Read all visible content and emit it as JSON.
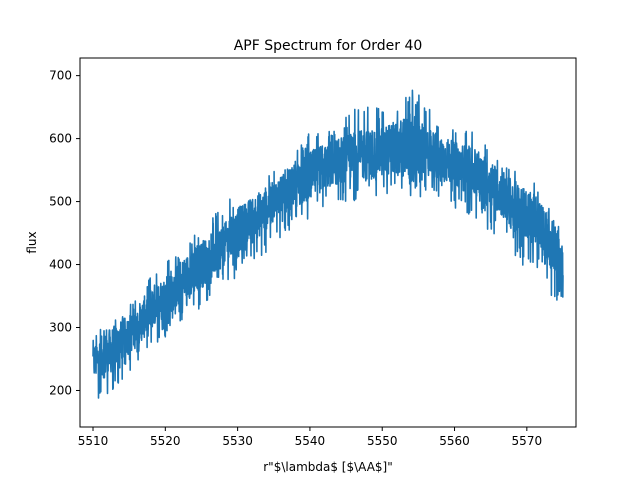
{
  "chart_data": {
    "type": "line",
    "title": "APF Spectrum for Order 40",
    "xlabel": "r\"$\\lambda$ [$\\AA$]\"",
    "ylabel": "flux",
    "xlim": [
      5508.2,
      5576.8
    ],
    "ylim": [
      142,
      728
    ],
    "x_ticks": [
      5510,
      5520,
      5530,
      5540,
      5550,
      5560,
      5570
    ],
    "y_ticks": [
      200,
      300,
      400,
      500,
      600,
      700
    ],
    "x_tick_labels": [
      "5510",
      "5520",
      "5530",
      "5540",
      "5550",
      "5560",
      "5570"
    ],
    "y_tick_labels": [
      "200",
      "300",
      "400",
      "500",
      "600",
      "700"
    ],
    "grid": false,
    "legend": "none",
    "line_color": "#1f77b4",
    "series": [
      {
        "x": [
          5510,
          5512,
          5514,
          5516,
          5518,
          5520,
          5522,
          5524,
          5526,
          5528,
          5530,
          5532,
          5534,
          5536,
          5538,
          5540,
          5542,
          5544,
          5546,
          5548,
          5550,
          5552,
          5554,
          5556,
          5558,
          5560,
          5562,
          5564,
          5566,
          5568,
          5570,
          5572,
          5574,
          5575
        ],
        "lower": [
          185,
          175,
          215,
          235,
          270,
          285,
          305,
          320,
          345,
          370,
          375,
          395,
          420,
          440,
          455,
          465,
          485,
          495,
          500,
          515,
          505,
          510,
          500,
          510,
          505,
          490,
          475,
          460,
          445,
          410,
          395,
          385,
          325,
          335
        ],
        "center": [
          245,
          258,
          280,
          300,
          330,
          350,
          370,
          390,
          410,
          430,
          450,
          470,
          490,
          510,
          525,
          540,
          555,
          565,
          570,
          575,
          580,
          585,
          585,
          580,
          570,
          560,
          550,
          535,
          520,
          495,
          480,
          460,
          420,
          400
        ],
        "upper": [
          290,
          310,
          330,
          350,
          395,
          410,
          430,
          460,
          480,
          490,
          520,
          530,
          545,
          550,
          580,
          610,
          620,
          630,
          645,
          660,
          650,
          665,
          702,
          650,
          640,
          615,
          615,
          600,
          575,
          560,
          540,
          520,
          475,
          440
        ]
      }
    ]
  }
}
